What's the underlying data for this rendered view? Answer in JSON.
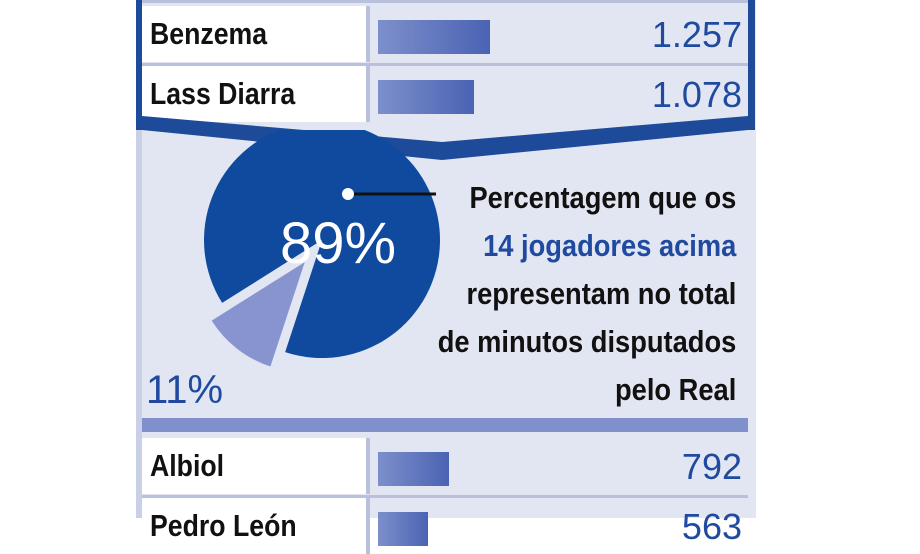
{
  "chart_data": {
    "type": "bar",
    "rows": [
      {
        "name": "Benzema",
        "value": 1257,
        "label": "1.257"
      },
      {
        "name": "Lass Diarra",
        "value": 1078,
        "label": "1.078"
      },
      {
        "name": "Albiol",
        "value": 792,
        "label": "792"
      },
      {
        "name": "Pedro León",
        "value": 563,
        "label": "563"
      }
    ],
    "bar_scale_max": 1257,
    "pie": {
      "type": "pie",
      "slices": [
        {
          "label": "89%",
          "value": 89,
          "color": "#0f4a9e"
        },
        {
          "label": "11%",
          "value": 11,
          "color": "#8794cf"
        }
      ],
      "caption_lines": [
        {
          "text": "Percentagem que os",
          "highlight": false
        },
        {
          "text": "14 jogadores acima",
          "highlight": true
        },
        {
          "text": "representam no total",
          "highlight": false
        },
        {
          "text": "de minutos disputados",
          "highlight": false
        },
        {
          "text": "pelo Real",
          "highlight": false
        }
      ]
    }
  },
  "colors": {
    "accent_blue": "#1f4aa0",
    "pie_main": "#0f4a9e",
    "pie_slice": "#8794cf",
    "panel": "#e2e6f2"
  }
}
